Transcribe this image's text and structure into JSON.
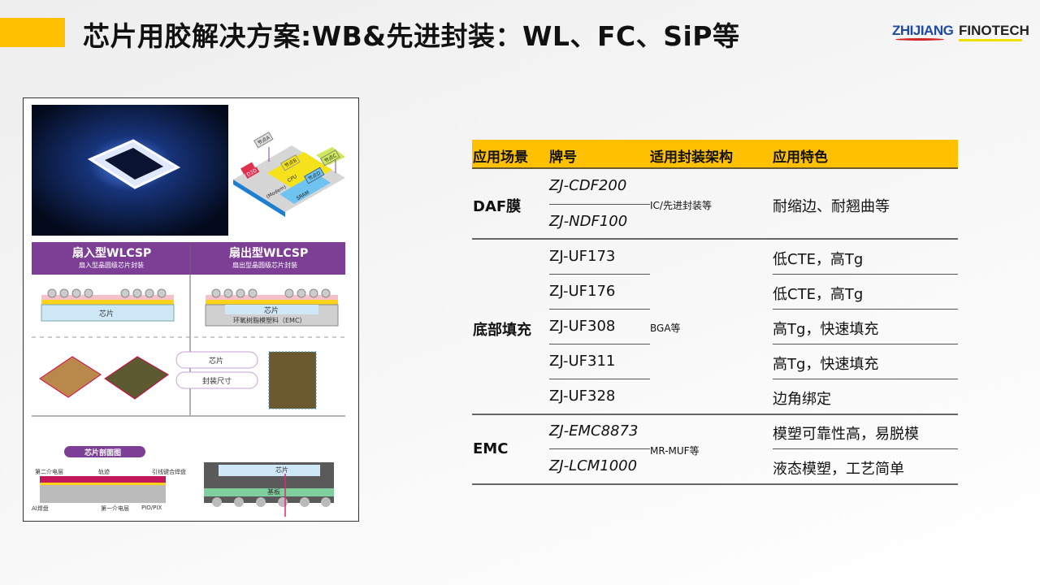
{
  "slide": {
    "title": "芯片用胶解决方案:WB&先进封装：WL、FC、SiP等",
    "accent_color": "#ffc000"
  },
  "logos": {
    "zhijiang": "ZHIJIANG",
    "finotech": "FINOTECH"
  },
  "collage": {
    "fanin_title": "扇入型WLCSP",
    "fanin_sub": "扇入型晶圆级芯片封装",
    "fanout_title": "扇出型WLCSP",
    "fanout_sub": "扇出型晶圆级芯片封装",
    "chip": "芯片",
    "emc": "环氧树脂模塑料（EMC）",
    "package_size": "封装尺寸",
    "section_title": "芯片剖面图",
    "layer2": "第二介电层",
    "trace": "轨迹",
    "bond_pad": "引线键合焊盘",
    "al_pad": "Al焊盘",
    "layer1": "第一介电层",
    "pio": "PIO/PIX",
    "substrate": "基板",
    "nodes": [
      "节点A",
      "节点B",
      "节点C",
      "节点D"
    ],
    "d2d": "D2D",
    "cpu": "CPU",
    "sram": "SRAM",
    "modem": "(Modem)"
  },
  "table": {
    "headers": [
      "应用场景",
      "牌号",
      "适用封装架构",
      "应用特色"
    ],
    "groups": [
      {
        "category": "DAF膜",
        "architecture": "IC/先进封装等",
        "products": [
          "ZJ-CDF200",
          "ZJ-NDF100"
        ],
        "features": [
          "耐缩边、耐翘曲等"
        ]
      },
      {
        "category": "底部填充",
        "architecture": "BGA等",
        "products": [
          "ZJ-UF173",
          "ZJ-UF176",
          "ZJ-UF308",
          "ZJ-UF311",
          "ZJ-UF328"
        ],
        "features": [
          "低CTE，高Tg",
          "低CTE，高Tg",
          "高Tg，快速填充",
          "高Tg，快速填充",
          "边角绑定"
        ]
      },
      {
        "category": "EMC",
        "architecture": "MR-MUF等",
        "products": [
          "ZJ-EMC8873",
          "ZJ-LCM1000"
        ],
        "features": [
          "模塑可靠性高，易脱模",
          "液态模塑，工艺简单"
        ]
      }
    ]
  }
}
